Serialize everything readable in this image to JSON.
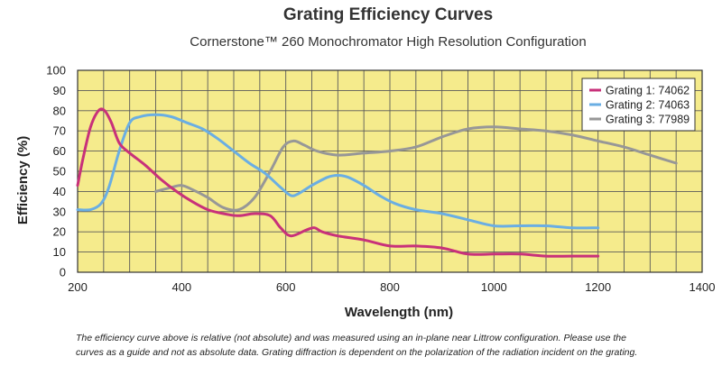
{
  "chart_data": {
    "type": "line",
    "title": "Grating Efficiency Curves",
    "subtitle": "Cornerstone™ 260 Monochromator High Resolution Configuration",
    "xlabel": "Wavelength (nm)",
    "ylabel": "Efficiency (%)",
    "xlim": [
      200,
      1400
    ],
    "ylim": [
      0,
      100
    ],
    "x_ticks": [
      200,
      400,
      600,
      800,
      1000,
      1200,
      1400
    ],
    "y_ticks": [
      0,
      10,
      20,
      30,
      40,
      50,
      60,
      70,
      80,
      90,
      100
    ],
    "grid": true,
    "legend_position": "top-right",
    "series": [
      {
        "name": "Grating 1: 74062",
        "color": "#c8317a",
        "x": [
          200,
          210,
          225,
          240,
          252,
          265,
          280,
          300,
          330,
          360,
          390,
          420,
          450,
          480,
          510,
          540,
          570,
          590,
          610,
          640,
          655,
          670,
          700,
          750,
          800,
          850,
          900,
          950,
          1000,
          1050,
          1100,
          1150,
          1200
        ],
        "y": [
          43,
          56,
          72,
          80,
          80,
          74,
          64,
          59,
          53,
          46,
          40,
          35,
          31,
          29,
          28,
          29,
          28,
          22,
          18,
          21,
          22,
          20,
          18,
          16,
          13,
          13,
          12,
          9,
          9,
          9,
          8,
          8,
          8
        ]
      },
      {
        "name": "Grating 2: 74063",
        "color": "#6aaee3",
        "x": [
          200,
          225,
          245,
          260,
          280,
          300,
          320,
          350,
          380,
          410,
          440,
          470,
          500,
          530,
          560,
          590,
          610,
          625,
          650,
          680,
          700,
          720,
          750,
          780,
          810,
          850,
          900,
          950,
          1000,
          1050,
          1100,
          1150,
          1200
        ],
        "y": [
          31,
          31,
          34,
          42,
          60,
          74,
          77,
          78,
          77,
          74,
          71,
          66,
          60,
          54,
          49,
          42,
          38,
          39,
          43,
          47,
          48,
          47,
          43,
          38,
          34,
          31,
          29,
          26,
          23,
          23,
          23,
          22,
          22
        ]
      },
      {
        "name": "Grating 3: 77989",
        "color": "#979797",
        "x": [
          350,
          380,
          400,
          420,
          450,
          480,
          510,
          540,
          570,
          595,
          615,
          635,
          660,
          700,
          750,
          800,
          850,
          900,
          950,
          1000,
          1050,
          1100,
          1150,
          1200,
          1250,
          1300,
          1350
        ],
        "y": [
          40,
          42,
          43,
          41,
          37,
          32,
          31,
          37,
          50,
          62,
          65,
          63,
          60,
          58,
          59,
          60,
          62,
          67,
          71,
          72,
          71,
          70,
          68,
          65,
          62,
          58,
          54
        ]
      }
    ]
  },
  "footnote": {
    "line1": "The efficiency curve above is relative (not absolute) and was measured using an in-plane near Littrow configuration.  Please use the",
    "line2": "curves as a guide and not as absolute data.  Grating diffraction is dependent on the polarization of the radiation incident on the grating."
  }
}
